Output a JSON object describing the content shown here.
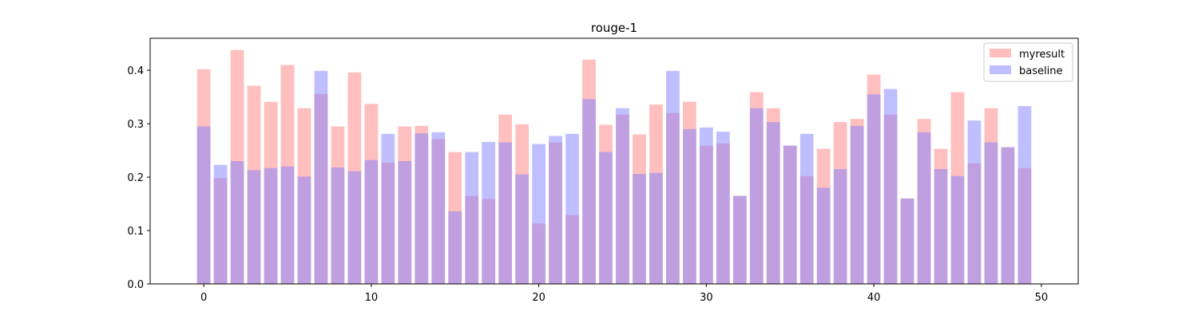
{
  "chart_data": {
    "type": "bar",
    "title": "rouge-1",
    "xlabel": "",
    "ylabel": "",
    "xlim": [
      -3.2,
      52.2
    ],
    "ylim": [
      0,
      0.46
    ],
    "x_ticks": [
      0,
      10,
      20,
      30,
      40,
      50
    ],
    "y_ticks": [
      0.0,
      0.1,
      0.2,
      0.3,
      0.4
    ],
    "x_tick_labels": [
      "0",
      "10",
      "20",
      "30",
      "40",
      "50"
    ],
    "y_tick_labels": [
      "0.0",
      "0.1",
      "0.2",
      "0.3",
      "0.4"
    ],
    "grid": false,
    "legend_position": "top-right",
    "x": [
      0,
      1,
      2,
      3,
      4,
      5,
      6,
      7,
      8,
      9,
      10,
      11,
      12,
      13,
      14,
      15,
      16,
      17,
      18,
      19,
      20,
      21,
      22,
      23,
      24,
      25,
      26,
      27,
      28,
      29,
      30,
      31,
      32,
      33,
      34,
      35,
      36,
      37,
      38,
      39,
      40,
      41,
      42,
      43,
      44,
      45,
      46,
      47,
      48,
      49
    ],
    "series": [
      {
        "name": "myresult",
        "color": "#ff7f7f",
        "opacity": 0.5,
        "values": [
          0.402,
          0.198,
          0.438,
          0.371,
          0.341,
          0.41,
          0.329,
          0.356,
          0.295,
          0.396,
          0.337,
          0.227,
          0.295,
          0.296,
          0.271,
          0.247,
          0.165,
          0.159,
          0.317,
          0.299,
          0.113,
          0.265,
          0.129,
          0.42,
          0.298,
          0.317,
          0.28,
          0.336,
          0.32,
          0.341,
          0.259,
          0.263,
          0.165,
          0.359,
          0.329,
          0.259,
          0.202,
          0.253,
          0.303,
          0.309,
          0.392,
          0.317,
          0.16,
          0.309,
          0.253,
          0.359,
          0.226,
          0.329,
          0.256,
          0.217
        ]
      },
      {
        "name": "baseline",
        "color": "#7f7fff",
        "opacity": 0.5,
        "values": [
          0.295,
          0.223,
          0.23,
          0.213,
          0.217,
          0.22,
          0.201,
          0.399,
          0.218,
          0.211,
          0.232,
          0.281,
          0.23,
          0.282,
          0.284,
          0.136,
          0.247,
          0.266,
          0.265,
          0.205,
          0.262,
          0.277,
          0.281,
          0.346,
          0.247,
          0.329,
          0.206,
          0.208,
          0.399,
          0.29,
          0.293,
          0.285,
          0.165,
          0.329,
          0.303,
          0.259,
          0.281,
          0.18,
          0.215,
          0.296,
          0.355,
          0.365,
          0.16,
          0.284,
          0.215,
          0.202,
          0.306,
          0.265,
          0.256,
          0.333
        ]
      }
    ]
  }
}
